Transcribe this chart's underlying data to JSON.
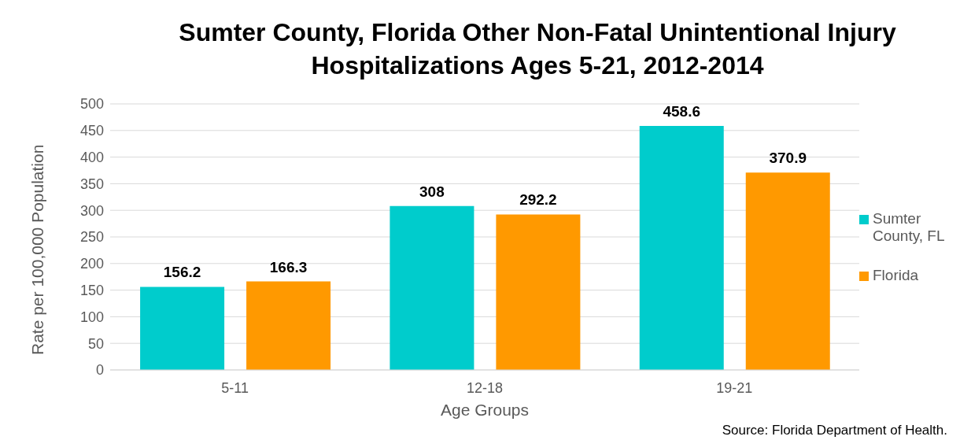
{
  "chart_data": {
    "type": "bar",
    "title": "Sumter County, Florida Other Non-Fatal Unintentional Injury Hospitalizations Ages 5-21, 2012-2014",
    "categories": [
      "5-11",
      "12-18",
      "19-21"
    ],
    "series": [
      {
        "name": "Sumter County, FL",
        "color": "#00cccc",
        "values": [
          156.2,
          308,
          458.6
        ]
      },
      {
        "name": "Florida",
        "color": "#ff9900",
        "values": [
          166.3,
          292.2,
          370.9
        ]
      }
    ],
    "xlabel": "Age Groups",
    "ylabel": "Rate per 100,000 Population",
    "ylim": [
      0,
      500
    ],
    "yticks": [
      0,
      50,
      100,
      150,
      200,
      250,
      300,
      350,
      400,
      450,
      500
    ],
    "grid": "y",
    "legend": "right",
    "data_labels": true,
    "annotations": [
      "Source: Florida Department of Health."
    ]
  }
}
